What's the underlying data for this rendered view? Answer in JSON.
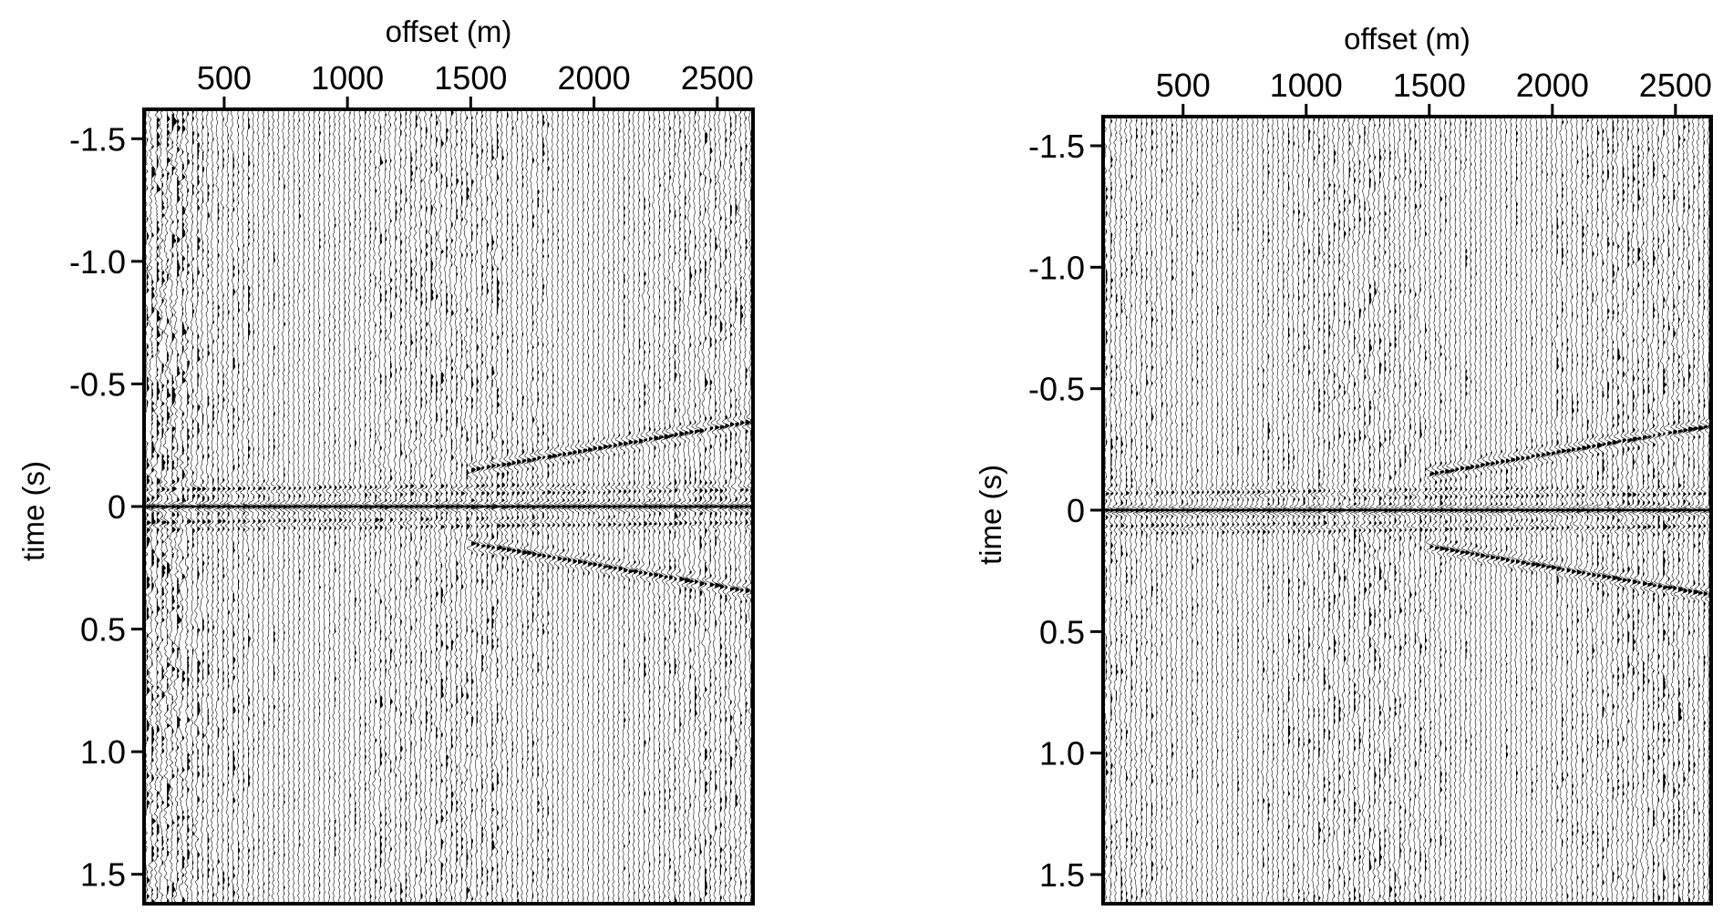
{
  "chart_data": [
    {
      "type": "seismic-wiggle",
      "xlabel": "offset (m)",
      "ylabel": "time (s)",
      "xlim": [
        175,
        2645
      ],
      "ylim": [
        -1.62,
        1.62
      ],
      "x_ticks": [
        "500",
        "1000",
        "1500",
        "2000",
        "2500"
      ],
      "x_tick_values": [
        500,
        1000,
        1500,
        2000,
        2500
      ],
      "y_ticks": [
        "-1.5",
        "-1.0",
        "-0.5",
        "0",
        "0.5",
        "1.0",
        "1.5"
      ],
      "y_tick_values": [
        -1.5,
        -1.0,
        -0.5,
        0,
        0.5,
        1.0,
        1.5
      ],
      "x_axis_position": "top",
      "trace_count": 120,
      "wiggle_fill": "positive-black",
      "line_color": "#000000",
      "zero_time_event": true,
      "strong_near_offset_noise": true,
      "dipping_far_offset_events": true
    },
    {
      "type": "seismic-wiggle",
      "xlabel": "offset (m)",
      "ylabel": "time (s)",
      "xlim": [
        175,
        2645
      ],
      "ylim": [
        -1.62,
        1.62
      ],
      "x_ticks": [
        "500",
        "1000",
        "1500",
        "2000",
        "2500"
      ],
      "x_tick_values": [
        500,
        1000,
        1500,
        2000,
        2500
      ],
      "y_ticks": [
        "-1.5",
        "-1.0",
        "-0.5",
        "0",
        "0.5",
        "1.0",
        "1.5"
      ],
      "y_tick_values": [
        -1.5,
        -1.0,
        -0.5,
        0,
        0.5,
        1.0,
        1.5
      ],
      "x_axis_position": "top",
      "trace_count": 120,
      "wiggle_fill": "positive-black",
      "line_color": "#000000",
      "zero_time_event": true,
      "strong_near_offset_noise": false,
      "dipping_far_offset_events": true
    }
  ]
}
